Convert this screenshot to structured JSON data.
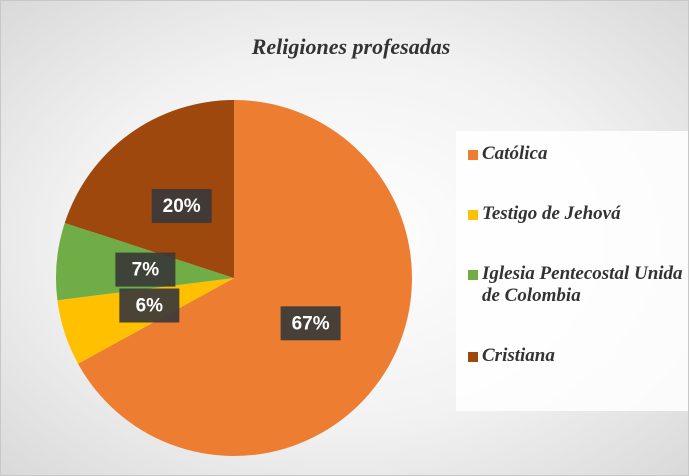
{
  "chart_data": {
    "type": "pie",
    "title": "Religiones profesadas",
    "categories": [
      "Católica",
      "Testigo de Jehová",
      "Iglesia Pentecostal Unida de Colombia",
      "Cristiana"
    ],
    "values": [
      67,
      6,
      7,
      20
    ],
    "value_labels": [
      "67%",
      "6%",
      "7%",
      "20%"
    ],
    "colors": [
      "#ED7D31",
      "#FFC000",
      "#70AD47",
      "#9E480E"
    ],
    "legend": "right"
  }
}
